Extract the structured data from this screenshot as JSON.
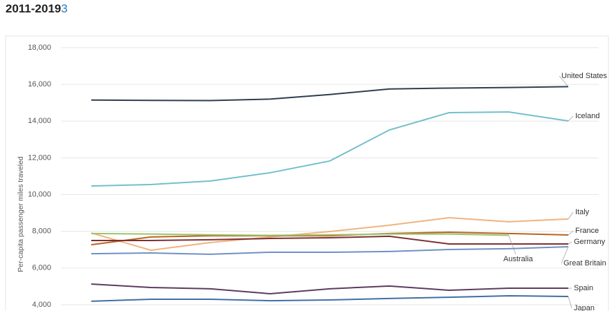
{
  "chart_data": {
    "type": "line",
    "title": "2011-2019",
    "title_note": "3",
    "y_label": "Per-capita passenger miles traveled",
    "categories": [
      null,
      null,
      null,
      null,
      null,
      null,
      null,
      null,
      null
    ],
    "ylim": [
      3660,
      18000
    ],
    "yticks": [
      {
        "value": 4000,
        "label": "4,000"
      },
      {
        "value": 6000,
        "label": "6,000"
      },
      {
        "value": 8000,
        "label": "8,000"
      },
      {
        "value": 10000,
        "label": "10,000"
      },
      {
        "value": 12000,
        "label": "12,000"
      },
      {
        "value": 14000,
        "label": "14,000"
      },
      {
        "value": 16000,
        "label": "16,000"
      },
      {
        "value": 18000,
        "label": "18,000"
      }
    ],
    "grid": true,
    "series": [
      {
        "name": "United States",
        "color": "#2d3e50",
        "values": [
          15150,
          15130,
          15120,
          15200,
          15450,
          15750,
          15800,
          15830,
          15880
        ]
      },
      {
        "name": "Iceland",
        "color": "#72bfca",
        "values": [
          10470,
          10550,
          10740,
          11190,
          11830,
          13520,
          14460,
          14500,
          14010
        ]
      },
      {
        "name": "Italy",
        "color": "#f2b27e",
        "values": [
          7910,
          6970,
          7390,
          7690,
          7990,
          8330,
          8740,
          8520,
          8670
        ]
      },
      {
        "name": "France",
        "color": "#b8641f",
        "values": [
          7270,
          7690,
          7760,
          7760,
          7760,
          7880,
          7950,
          7880,
          7800
        ]
      },
      {
        "name": "Germany",
        "color": "#7d2f32",
        "values": [
          7500,
          7500,
          7540,
          7610,
          7650,
          7730,
          7310,
          7310,
          7310
        ]
      },
      {
        "name": "Australia",
        "color": "#9cc46b",
        "values": [
          7880,
          7850,
          7810,
          7780,
          7810,
          7850,
          7850,
          7780,
          null
        ]
      },
      {
        "name": "Great Britain",
        "color": "#6e90c4",
        "values": [
          6780,
          6820,
          6750,
          6860,
          6860,
          6900,
          7010,
          7050,
          7160
        ]
      },
      {
        "name": "Spain",
        "color": "#5b3b5e",
        "values": [
          5130,
          4940,
          4870,
          4600,
          4870,
          5020,
          4790,
          4900,
          4900
        ]
      },
      {
        "name": "Japan",
        "color": "#3f6ea5",
        "values": [
          4190,
          4300,
          4300,
          4220,
          4260,
          4340,
          4410,
          4490,
          4450
        ]
      }
    ]
  }
}
